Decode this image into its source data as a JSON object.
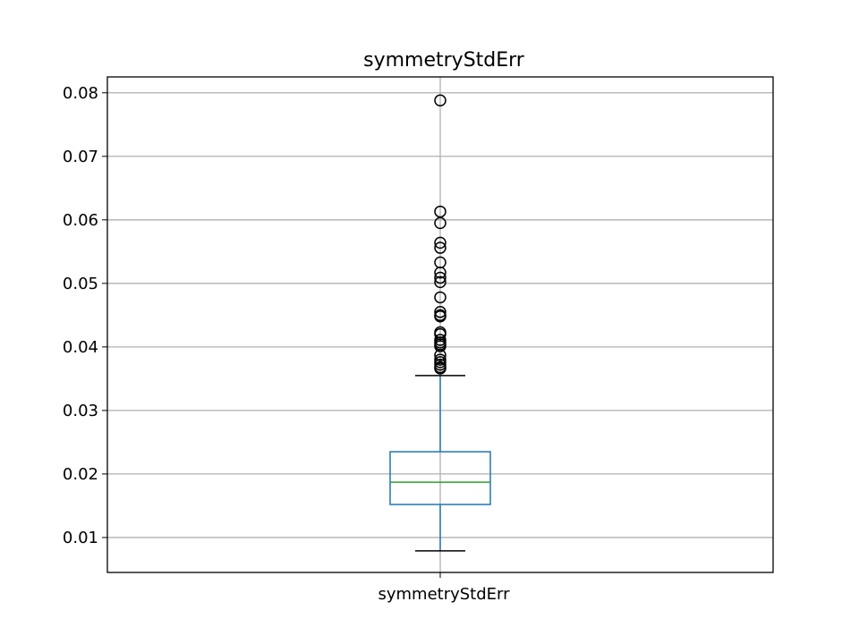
{
  "chart_data": {
    "type": "box",
    "title": "symmetryStdErr",
    "categories": [
      "symmetryStdErr"
    ],
    "xlabel": "",
    "ylabel": "",
    "ylim": [
      0.0045,
      0.0825
    ],
    "yticks": [
      0.01,
      0.02,
      0.03,
      0.04,
      0.05,
      0.06,
      0.07,
      0.08
    ],
    "ytick_labels": [
      "0.01",
      "0.02",
      "0.03",
      "0.04",
      "0.05",
      "0.06",
      "0.07",
      "0.08"
    ],
    "grid": true,
    "box": {
      "whisker_low": 0.0079,
      "q1": 0.0152,
      "median": 0.0187,
      "q3": 0.0235,
      "whisker_high": 0.0355
    },
    "outliers": [
      0.0788,
      0.0613,
      0.0595,
      0.0564,
      0.0556,
      0.0533,
      0.0517,
      0.0509,
      0.0502,
      0.0478,
      0.0455,
      0.045,
      0.0448,
      0.0423,
      0.042,
      0.0411,
      0.0407,
      0.0404,
      0.0401,
      0.0387,
      0.038,
      0.0376,
      0.0372,
      0.0368,
      0.0366
    ],
    "colors": {
      "box": "#1f77b4",
      "median": "#2ca02c",
      "whisker_cap": "#000000",
      "grid": "#b0b0b0"
    }
  }
}
